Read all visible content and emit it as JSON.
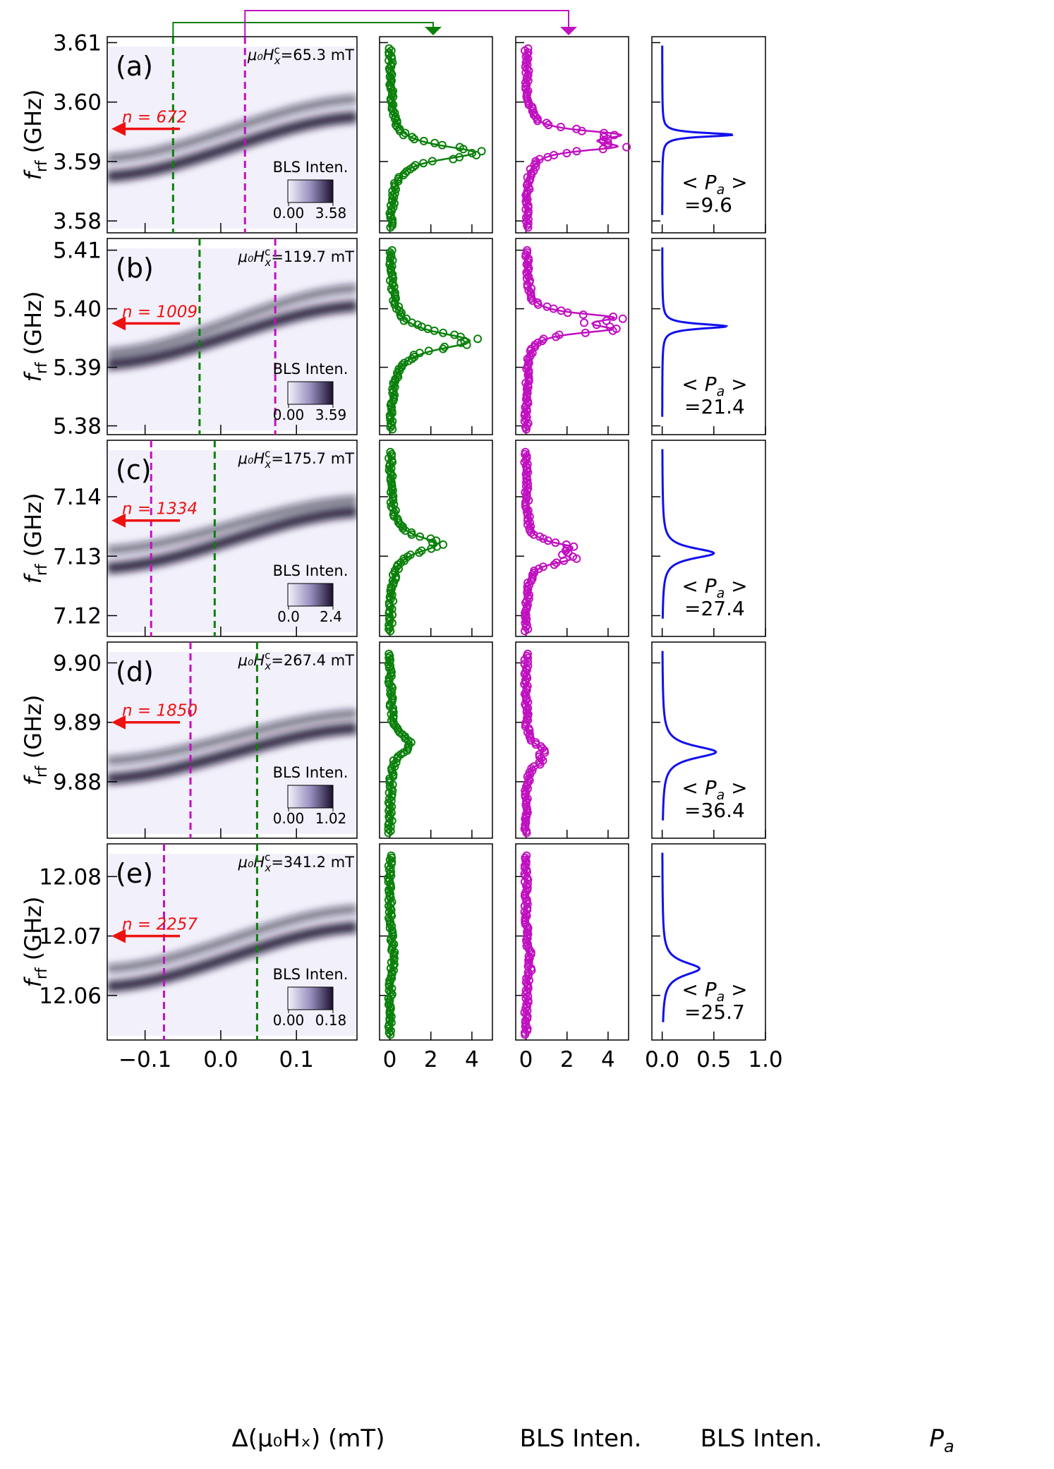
{
  "figure": {
    "x_label_heatmap": "Δ(μ₀Hₓ) (mT)",
    "x_label_bls": "BLS Inten.",
    "x_label_pa": "P",
    "x_label_pa_sub": "a",
    "y_label_main": "f",
    "y_label_sub": "rf",
    "y_label_unit": " (GHz)",
    "colorbar_title": "BLS Inten.",
    "field_prefix": "μ₀H",
    "field_sup": "c",
    "field_sub": "x",
    "pa_label": "< P",
    "pa_label_sub": "a",
    "pa_label_end": " >",
    "colors": {
      "green": "#0a800a",
      "magenta": "#c010c0",
      "blue": "#1010ee",
      "red": "#ee1111",
      "heat_dark": "#1a0f2e",
      "heat_light": "#f2f0fa"
    }
  },
  "chart_data": [
    {
      "type": "heatmap",
      "panel": "(a)",
      "field": "=65.3 mT",
      "xlim": [
        -0.15,
        0.18
      ],
      "xticks": [
        "−0.1",
        "0.0",
        "0.1"
      ],
      "ylim": [
        3.578,
        3.611
      ],
      "yticks": [
        "3.58",
        "3.59",
        "3.60",
        "3.61"
      ],
      "ytick_values": [
        3.58,
        3.59,
        3.6,
        3.61
      ],
      "ridge_low": [
        3.5875,
        3.5975
      ],
      "ridge_high": [
        3.5905,
        3.6005
      ],
      "dashed_green_x": -0.063,
      "dashed_magenta_x": 0.032,
      "mode_label": "n = 672",
      "mode_freq": 3.5955,
      "colorbar_min": "0.00",
      "colorbar_max": "3.58",
      "green_peak": {
        "center": 3.5915,
        "height": 4.1,
        "width": 0.0015
      },
      "magenta_peaks": {
        "c1": 3.5945,
        "c2": 3.5925,
        "height": 4.2,
        "width": 0.0009
      },
      "pa_peak": {
        "center": 3.5945,
        "height": 0.68,
        "width": 0.0004
      },
      "pa_avg": "=9.6"
    },
    {
      "type": "heatmap",
      "panel": "(b)",
      "field": "=119.7 mT",
      "xlim": [
        -0.15,
        0.18
      ],
      "xticks": [
        "−0.1",
        "0.0",
        "0.1"
      ],
      "ylim": [
        5.3785,
        5.412
      ],
      "yticks": [
        "5.38",
        "5.39",
        "5.40",
        "5.41"
      ],
      "ytick_values": [
        5.38,
        5.39,
        5.4,
        5.41
      ],
      "ridge_low": [
        5.3905,
        5.4005
      ],
      "ridge_high": [
        5.3925,
        5.4035
      ],
      "dashed_green_x": -0.028,
      "dashed_magenta_x": 0.072,
      "mode_label": "n = 1009",
      "mode_freq": 5.3975,
      "colorbar_min": "0.00",
      "colorbar_max": "3.59",
      "green_peak": {
        "center": 5.3945,
        "height": 3.9,
        "width": 0.0018
      },
      "magenta_peaks": {
        "c1": 5.3985,
        "c2": 5.3965,
        "height": 3.9,
        "width": 0.0009
      },
      "pa_peak": {
        "center": 5.397,
        "height": 0.62,
        "width": 0.0005
      },
      "pa_avg": "=21.4"
    },
    {
      "type": "heatmap",
      "panel": "(c)",
      "field": "=175.7 mT",
      "xlim": [
        -0.15,
        0.18
      ],
      "xticks": [
        "−0.1",
        "0.0",
        "0.1"
      ],
      "ylim": [
        7.1165,
        7.1495
      ],
      "yticks": [
        "7.12",
        "7.13",
        "7.14"
      ],
      "ytick_values": [
        7.12,
        7.13,
        7.14
      ],
      "ridge_low": [
        7.128,
        7.1375
      ],
      "ridge_high": [
        7.131,
        7.1395
      ],
      "dashed_green_x": -0.008,
      "dashed_magenta_x": -0.092,
      "mode_label": "n = 1334",
      "mode_freq": 7.136,
      "colorbar_min": "0.0",
      "colorbar_max": "2.4",
      "green_peak": {
        "center": 7.132,
        "height": 2.3,
        "width": 0.0017
      },
      "magenta_peaks": {
        "c1": 7.1315,
        "c2": 7.1295,
        "height": 2.0,
        "width": 0.001
      },
      "pa_peak": {
        "center": 7.1305,
        "height": 0.5,
        "width": 0.0011
      },
      "pa_avg": "=27.4"
    },
    {
      "type": "heatmap",
      "panel": "(d)",
      "field": "=267.4 mT",
      "xlim": [
        -0.15,
        0.18
      ],
      "xticks": [
        "−0.1",
        "0.0",
        "0.1"
      ],
      "ylim": [
        9.8705,
        9.9035
      ],
      "yticks": [
        "9.88",
        "9.89",
        "9.90"
      ],
      "ytick_values": [
        9.88,
        9.89,
        9.9
      ],
      "ridge_low": [
        9.8805,
        9.889
      ],
      "ridge_high": [
        9.8835,
        9.8915
      ],
      "dashed_green_x": 0.048,
      "dashed_magenta_x": -0.04,
      "mode_label": "n = 1850",
      "mode_freq": 9.89,
      "colorbar_min": "0.00",
      "colorbar_max": "1.02",
      "green_peak": {
        "center": 9.8865,
        "height": 1.0,
        "width": 0.0018
      },
      "magenta_peaks": {
        "c1": 9.8855,
        "c2": 9.8835,
        "height": 0.75,
        "width": 0.001
      },
      "pa_peak": {
        "center": 9.885,
        "height": 0.52,
        "width": 0.0013
      },
      "pa_avg": "=36.4"
    },
    {
      "type": "heatmap",
      "panel": "(e)",
      "field": "=341.2 mT",
      "xlim": [
        -0.15,
        0.18
      ],
      "xticks": [
        "−0.1",
        "0.0",
        "0.1"
      ],
      "ylim": [
        12.0525,
        12.0855
      ],
      "yticks": [
        "12.06",
        "12.07",
        "12.08"
      ],
      "ytick_values": [
        12.06,
        12.07,
        12.08
      ],
      "ridge_low": [
        12.0615,
        12.0715
      ],
      "ridge_high": [
        12.0645,
        12.0745
      ],
      "dashed_green_x": 0.048,
      "dashed_magenta_x": -0.075,
      "mode_label": "n = 2257",
      "mode_freq": 12.07,
      "colorbar_min": "0.00",
      "colorbar_max": "0.18",
      "green_peak": {
        "center": 12.0665,
        "height": 0.16,
        "width": 0.003
      },
      "magenta_peaks": {
        "c1": 12.0665,
        "c2": 12.0645,
        "height": 0.14,
        "width": 0.002
      },
      "pa_peak": {
        "center": 12.0645,
        "height": 0.36,
        "width": 0.0014
      },
      "pa_avg": "=25.7"
    }
  ],
  "bls_axes": {
    "xlim": [
      -0.5,
      5.0
    ],
    "xticks": [
      "0",
      "2",
      "4"
    ],
    "xtick_values": [
      0,
      2,
      4
    ]
  },
  "pa_axes": {
    "xlim": [
      -0.1,
      1.0
    ],
    "xticks": [
      "0.0",
      "0.5",
      "1.0"
    ],
    "xtick_values": [
      0.0,
      0.5,
      1.0
    ]
  }
}
